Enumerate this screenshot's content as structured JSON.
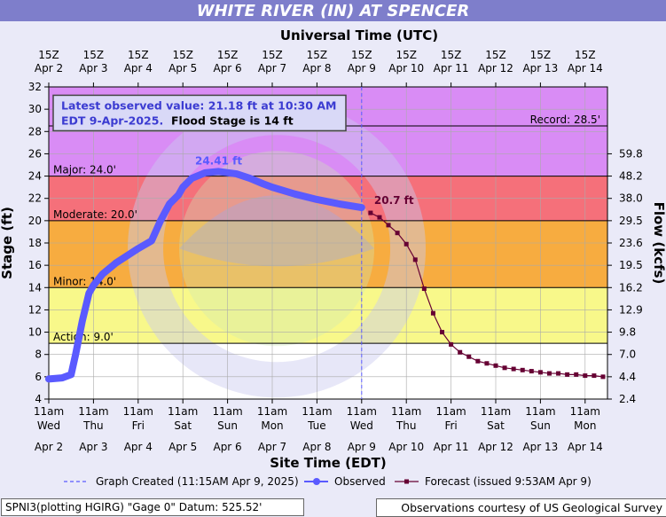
{
  "title": "WHITE RIVER (IN) AT SPENCER",
  "colors": {
    "title_bar": "#7e7ecb",
    "record": "#d98cf5",
    "major": "#f5707a",
    "moderate": "#f7ac40",
    "minor": "#f8f88a",
    "action": "#ffffff",
    "observed": "#5a5aff",
    "forecast": "#660033",
    "background": "#eaeaf8"
  },
  "top_axis_title": "Universal Time (UTC)",
  "bottom_axis_title": "Site Time (EDT)",
  "latest_box": {
    "line1": "Latest observed value: 21.18 ft at 10:30 AM",
    "line2": "EDT 9-Apr-2025.",
    "flood_stage": "Flood Stage is 14 ft"
  },
  "footer": {
    "left": "SPNI3(plotting HGIRG) \"Gage 0\" Datum: 525.52'",
    "right": "Observations courtesy of US Geological Survey"
  },
  "chart_data": {
    "type": "line",
    "title": "WHITE RIVER (IN) AT SPENCER",
    "ylabel": "Stage (ft)",
    "y2label": "Flow (kcfs)",
    "xlabel": "Site Time (EDT)",
    "x2label": "Universal Time (UTC)",
    "ylim": [
      4,
      32
    ],
    "xlim": [
      0,
      12.5
    ],
    "y_ticks": [
      "4",
      "6",
      "8",
      "10",
      "12",
      "14",
      "16",
      "18",
      "20",
      "22",
      "24",
      "26",
      "28",
      "30",
      "32"
    ],
    "flow_ticks": [
      {
        "stage": 4,
        "label": "2.4"
      },
      {
        "stage": 6,
        "label": "4.4"
      },
      {
        "stage": 8,
        "label": "7.0"
      },
      {
        "stage": 10,
        "label": "9.8"
      },
      {
        "stage": 12,
        "label": "12.9"
      },
      {
        "stage": 14,
        "label": "16.2"
      },
      {
        "stage": 16,
        "label": "19.5"
      },
      {
        "stage": 18,
        "label": "23.6"
      },
      {
        "stage": 20,
        "label": "29.5"
      },
      {
        "stage": 22,
        "label": "38.0"
      },
      {
        "stage": 24,
        "label": "48.2"
      },
      {
        "stage": 26,
        "label": "59.8"
      }
    ],
    "utc_ticks": [
      [
        "15Z",
        "Apr 2"
      ],
      [
        "15Z",
        "Apr 3"
      ],
      [
        "15Z",
        "Apr 4"
      ],
      [
        "15Z",
        "Apr 5"
      ],
      [
        "15Z",
        "Apr 6"
      ],
      [
        "15Z",
        "Apr 7"
      ],
      [
        "15Z",
        "Apr 8"
      ],
      [
        "15Z",
        "Apr 9"
      ],
      [
        "15Z",
        "Apr 10"
      ],
      [
        "15Z",
        "Apr 11"
      ],
      [
        "15Z",
        "Apr 12"
      ],
      [
        "15Z",
        "Apr 13"
      ],
      [
        "15Z",
        "Apr 14"
      ]
    ],
    "local_ticks": [
      [
        "11am",
        "Wed",
        "Apr 2"
      ],
      [
        "11am",
        "Thu",
        "Apr 3"
      ],
      [
        "11am",
        "Fri",
        "Apr 4"
      ],
      [
        "11am",
        "Sat",
        "Apr 5"
      ],
      [
        "11am",
        "Sun",
        "Apr 6"
      ],
      [
        "11am",
        "Mon",
        "Apr 7"
      ],
      [
        "11am",
        "Tue",
        "Apr 8"
      ],
      [
        "11am",
        "Wed",
        "Apr 9"
      ],
      [
        "11am",
        "Thu",
        "Apr 10"
      ],
      [
        "11am",
        "Fri",
        "Apr 11"
      ],
      [
        "11am",
        "Sat",
        "Apr 12"
      ],
      [
        "11am",
        "Sun",
        "Apr 13"
      ],
      [
        "11am",
        "Mon",
        "Apr 14"
      ]
    ],
    "flood_categories": [
      {
        "name": "Action",
        "label": "Action: 9.0'",
        "stage": 9.0
      },
      {
        "name": "Minor",
        "label": "Minor: 14.0'",
        "stage": 14.0
      },
      {
        "name": "Moderate",
        "label": "Moderate: 20.0'",
        "stage": 20.0
      },
      {
        "name": "Major",
        "label": "Major: 24.0'",
        "stage": 24.0
      },
      {
        "name": "Record",
        "label": "Record: 28.5'",
        "stage": 28.5
      }
    ],
    "graph_created_x": 7.0,
    "observed": {
      "name": "Observed",
      "peak_label": "24.41 ft",
      "x": [
        0,
        0.3,
        0.5,
        0.6,
        0.75,
        0.9,
        1.0,
        1.2,
        1.5,
        2.0,
        2.3,
        2.5,
        2.7,
        2.9,
        3.0,
        3.2,
        3.5,
        3.8,
        4.2,
        4.5,
        4.8,
        5.0,
        5.5,
        6.0,
        6.5,
        7.0
      ],
      "y": [
        5.8,
        5.9,
        6.2,
        8.0,
        11.0,
        13.5,
        14.2,
        15.2,
        16.2,
        17.5,
        18.2,
        20.0,
        21.5,
        22.3,
        23.0,
        23.8,
        24.3,
        24.41,
        24.2,
        23.8,
        23.3,
        23.0,
        22.4,
        21.9,
        21.5,
        21.18
      ]
    },
    "forecast": {
      "name": "Forecast",
      "start_label": "20.7 ft",
      "x": [
        7.2,
        7.4,
        7.6,
        7.8,
        8.0,
        8.2,
        8.4,
        8.6,
        8.8,
        9.0,
        9.2,
        9.4,
        9.6,
        9.8,
        10.0,
        10.2,
        10.4,
        10.6,
        10.8,
        11.0,
        11.2,
        11.4,
        11.6,
        11.8,
        12.0,
        12.2,
        12.4
      ],
      "y": [
        20.7,
        20.3,
        19.6,
        18.9,
        17.9,
        16.5,
        13.9,
        11.7,
        10.0,
        8.9,
        8.2,
        7.8,
        7.4,
        7.2,
        7.0,
        6.8,
        6.7,
        6.6,
        6.5,
        6.4,
        6.3,
        6.3,
        6.2,
        6.2,
        6.1,
        6.1,
        6.0
      ]
    },
    "legend": [
      {
        "name": "graph-created",
        "label": "Graph Created (11:15AM Apr 9, 2025)"
      },
      {
        "name": "observed",
        "label": "Observed"
      },
      {
        "name": "forecast",
        "label": "Forecast (issued 9:53AM Apr 9)"
      }
    ]
  }
}
